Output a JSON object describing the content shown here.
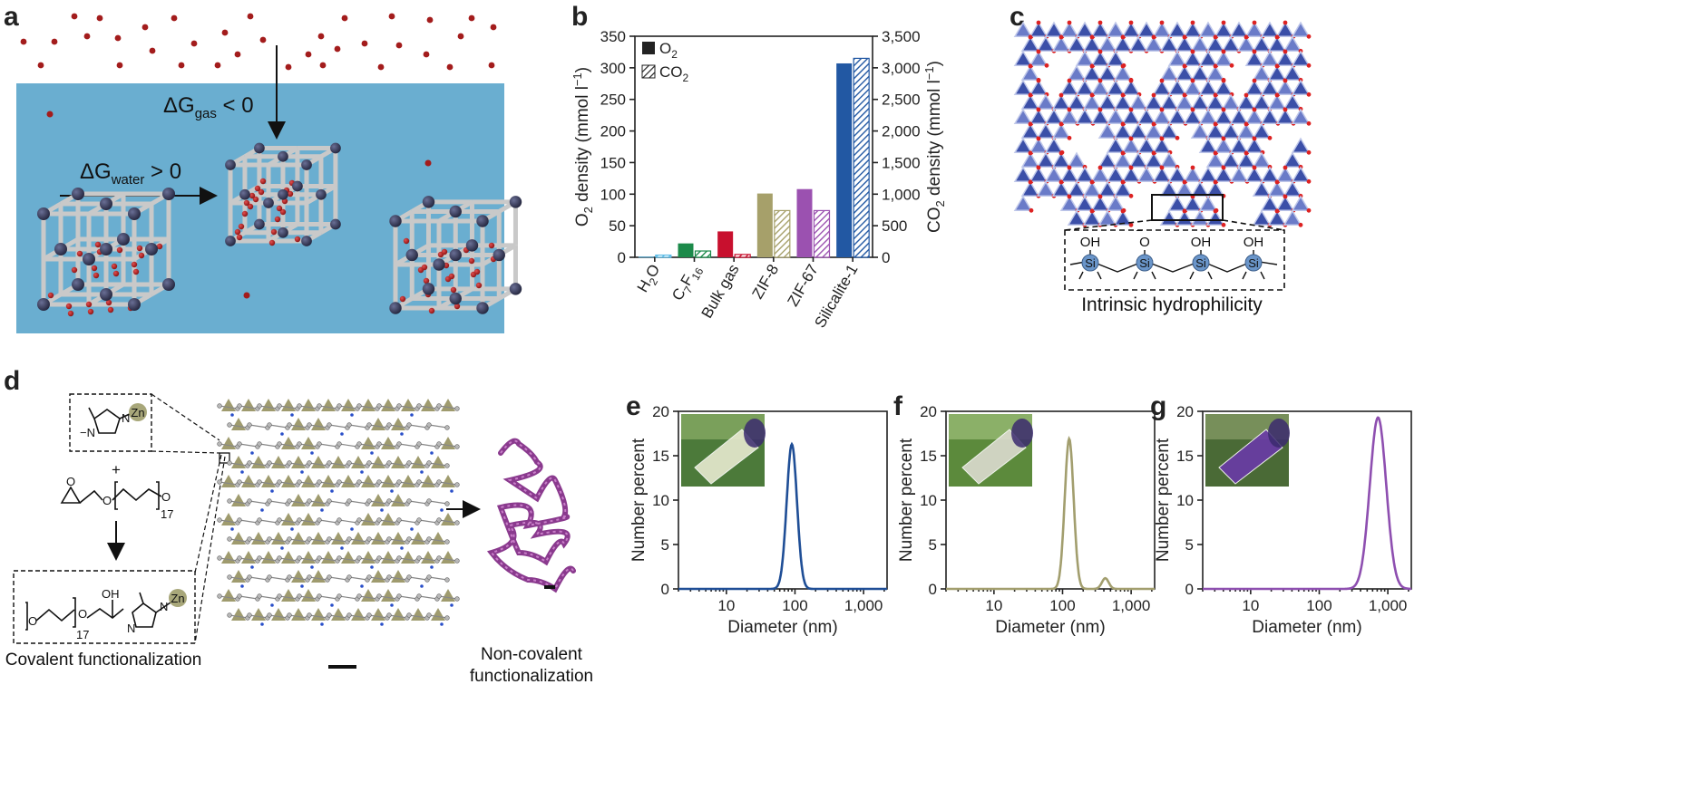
{
  "panels": {
    "a": {
      "label": "a",
      "dg_gas_sub": "gas",
      "dg_gas_rhs": " < 0",
      "dg_water_sub": "water",
      "dg_water_rhs": " > 0"
    },
    "b": {
      "label": "b"
    },
    "c": {
      "label": "c",
      "caption": "Intrinsic hydrophilicity",
      "oh": "OH",
      "ominus": "O",
      "si": "Si"
    },
    "d": {
      "label": "d",
      "zn": "Zn",
      "n": "N",
      "o": "O",
      "plus": "+",
      "n17": "17",
      "covalent": "Covalent functionalization",
      "noncovalent1": "Non-covalent",
      "noncovalent2": "functionalization"
    },
    "e": {
      "label": "e"
    },
    "f": {
      "label": "f"
    },
    "g": {
      "label": "g"
    }
  },
  "chart_data": [
    {
      "id": "b",
      "type": "bar",
      "categories": [
        "H2O",
        "C7F16",
        "Bulk gas",
        "ZIF-8",
        "ZIF-67",
        "Silicalite-1"
      ],
      "category_labels": [
        {
          "main": "H",
          "sub": "2",
          "tail": "O"
        },
        {
          "main": "C",
          "sub": "7",
          "mid": "F",
          "sub2": "16"
        },
        {
          "main": "Bulk gas"
        },
        {
          "main": "ZIF-8"
        },
        {
          "main": "ZIF-67"
        },
        {
          "main": "Silicalite-1"
        }
      ],
      "series": [
        {
          "name": "O2",
          "axis": "left",
          "values": [
            1,
            22,
            41,
            101,
            108,
            307
          ]
        },
        {
          "name": "CO2",
          "axis": "right",
          "values": [
            35,
            100,
            45,
            740,
            740,
            3150
          ]
        }
      ],
      "colors": [
        "#5bbbe6",
        "#1c8a4a",
        "#c8102e",
        "#a6a06a",
        "#9b51b0",
        "#2258a3"
      ],
      "ylabel_left": "O2 density (mmol l−1)",
      "ylabel_right": "CO2 density (mmol l−1)",
      "ylim_left": [
        0,
        350
      ],
      "ylim_right": [
        0,
        3500
      ],
      "yticks_left": [
        "0",
        "50",
        "100",
        "150",
        "200",
        "250",
        "300",
        "350"
      ],
      "yticks_right": [
        "0",
        "500",
        "1,000",
        "1,500",
        "2,000",
        "2,500",
        "3,000",
        "3,500"
      ],
      "legend": [
        "O2",
        "CO2"
      ],
      "legend_position": "top-left"
    },
    {
      "id": "e",
      "type": "line",
      "color": "#1f4e96",
      "xlabel": "Diameter (nm)",
      "ylabel": "Number percent",
      "xscale": "log",
      "xlim": [
        2,
        2200
      ],
      "ylim": [
        0,
        20
      ],
      "yticks": [
        "0",
        "5",
        "10",
        "15",
        "20"
      ],
      "xticks": [
        "10",
        "100",
        "1,000"
      ],
      "peaks": [
        {
          "center": 90,
          "height": 16.3,
          "width_log": 0.075
        }
      ]
    },
    {
      "id": "f",
      "type": "line",
      "color": "#a29e6e",
      "xlabel": "Diameter (nm)",
      "ylabel": "Number percent",
      "xscale": "log",
      "xlim": [
        2,
        2200
      ],
      "ylim": [
        0,
        20
      ],
      "yticks": [
        "0",
        "5",
        "10",
        "15",
        "20"
      ],
      "xticks": [
        "10",
        "100",
        "1,000"
      ],
      "peaks": [
        {
          "center": 125,
          "height": 16.9,
          "width_log": 0.065
        },
        {
          "center": 420,
          "height": 1.2,
          "width_log": 0.05
        }
      ]
    },
    {
      "id": "g",
      "type": "line",
      "color": "#8e4fb0",
      "xlabel": "Diameter (nm)",
      "ylabel": "Number percent",
      "xscale": "log",
      "xlim": [
        2,
        2200
      ],
      "ylim": [
        0,
        20
      ],
      "yticks": [
        "0",
        "5",
        "10",
        "15",
        "20"
      ],
      "xticks": [
        "10",
        "100",
        "1,000"
      ],
      "peaks": [
        {
          "center": 720,
          "height": 19.3,
          "width_log": 0.12
        }
      ]
    }
  ]
}
